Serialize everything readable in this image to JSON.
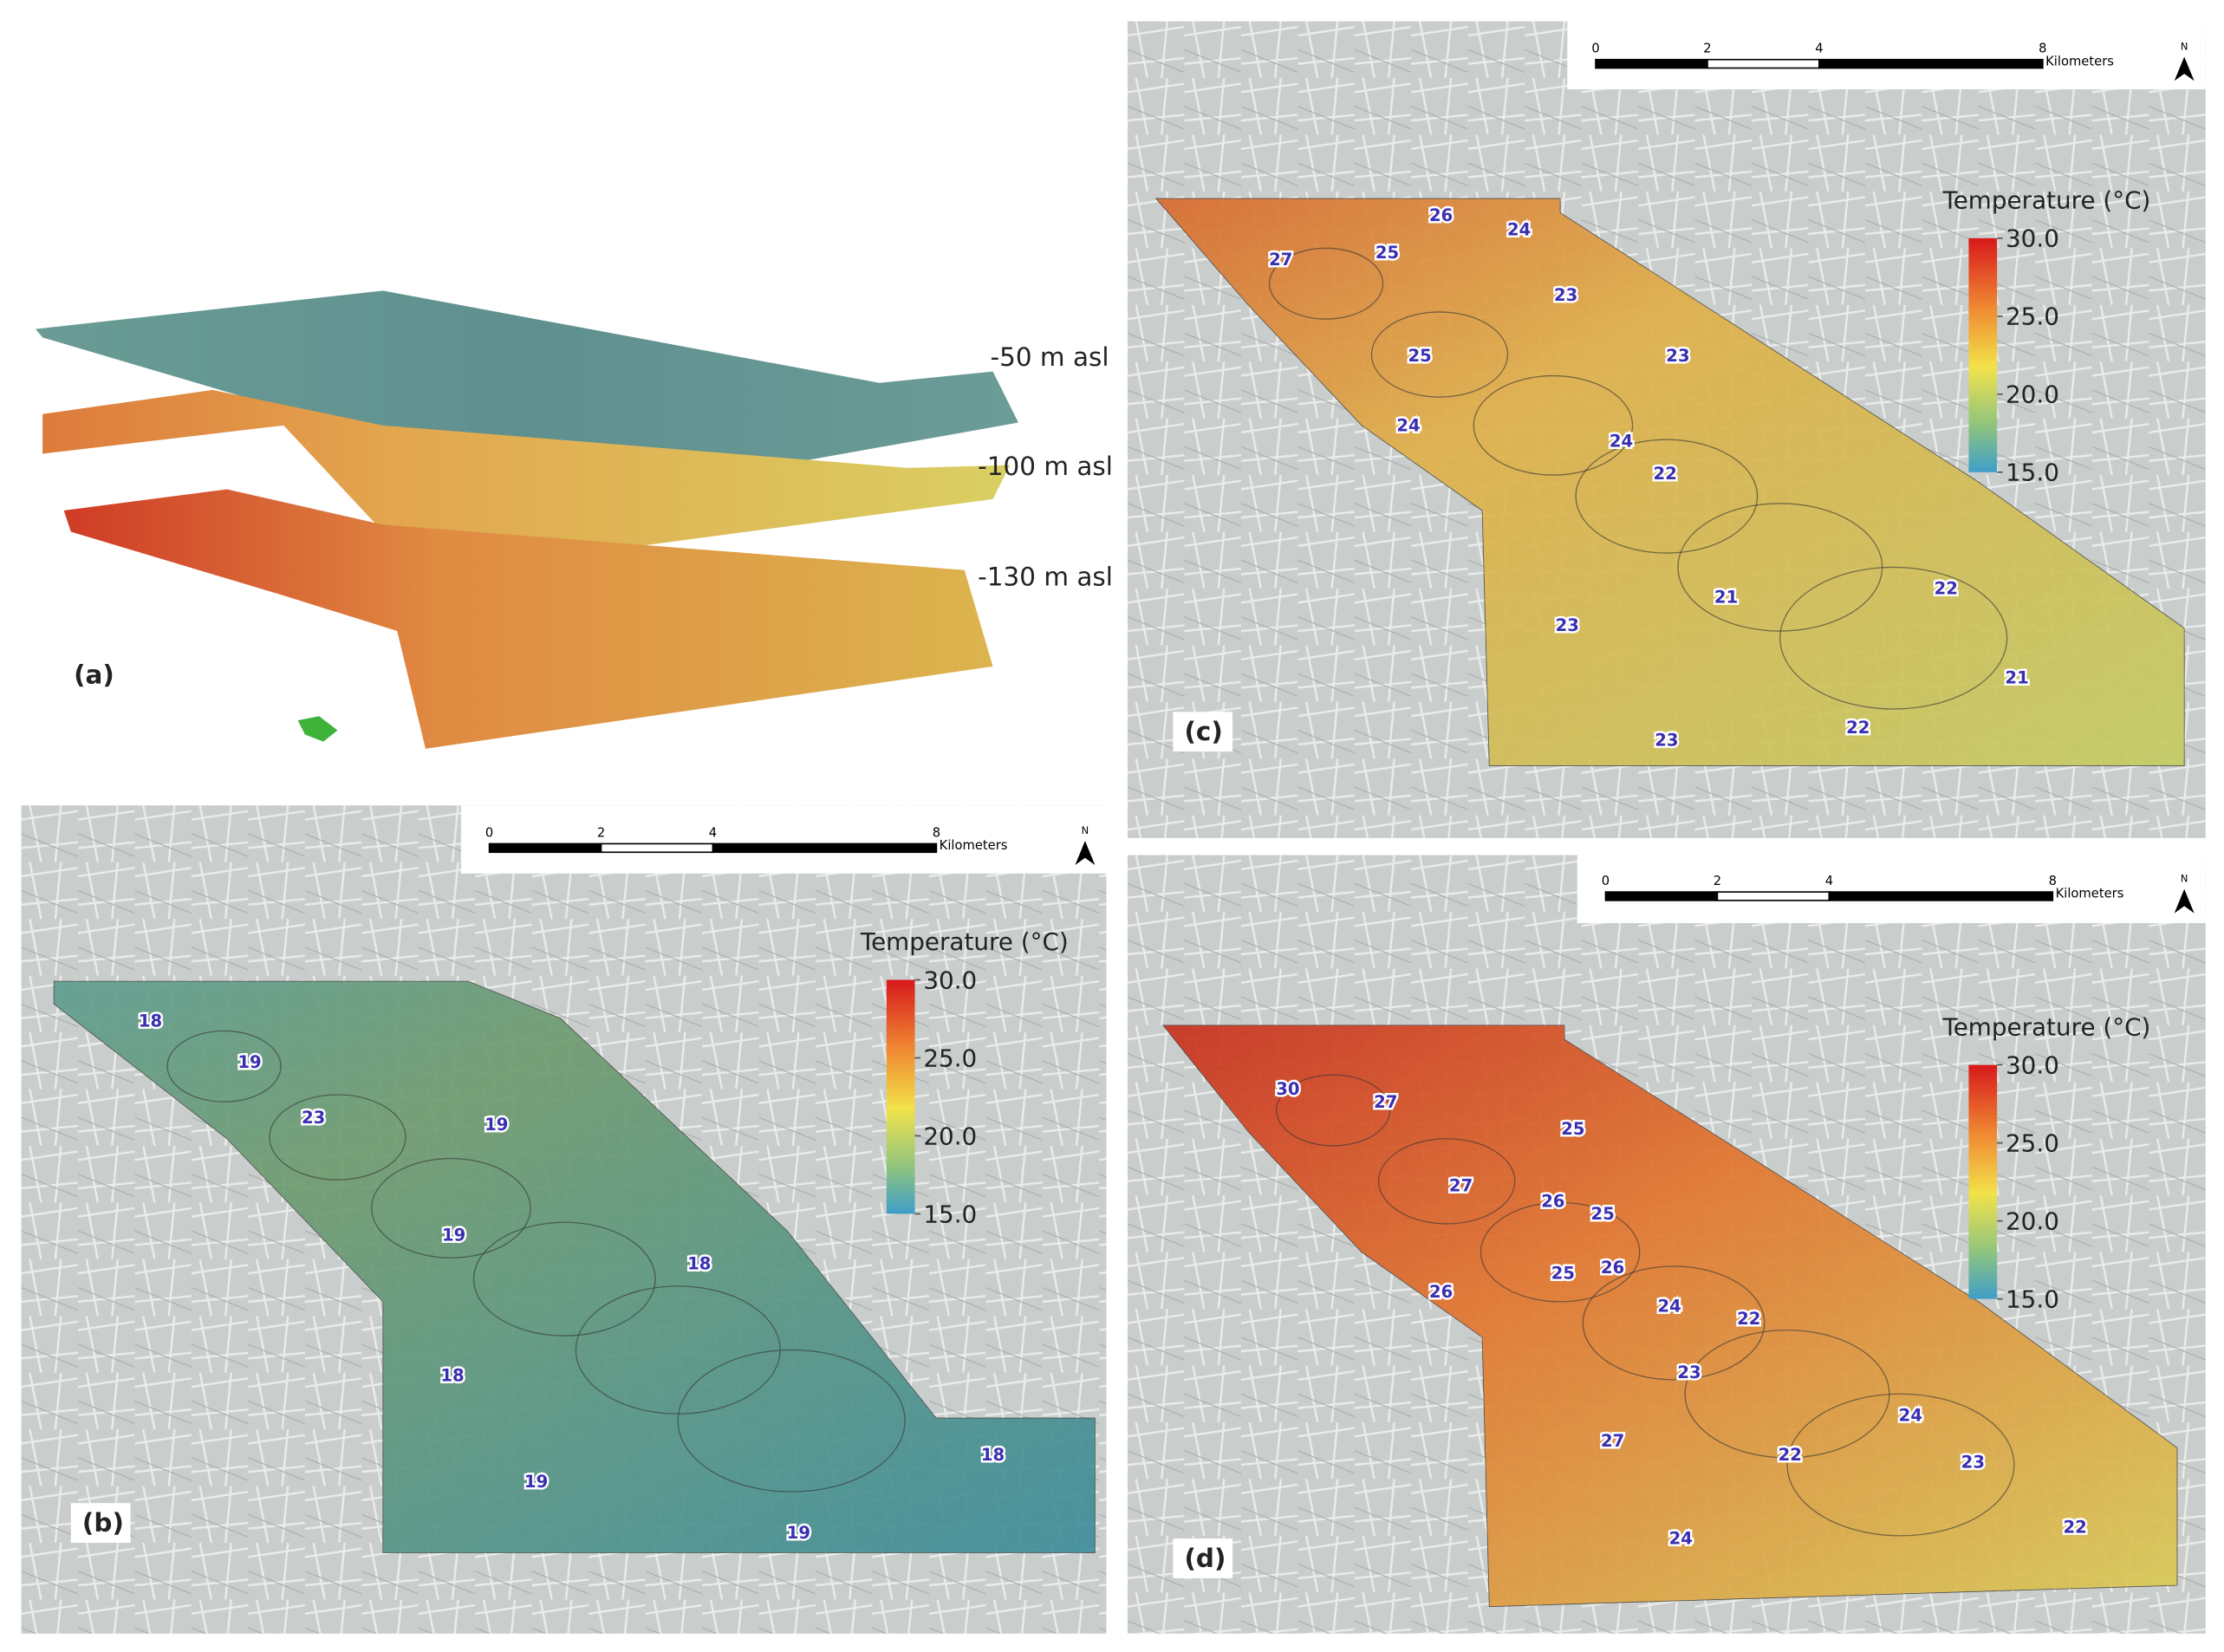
{
  "panel_a": {
    "label": "(a)",
    "layers": [
      "-50 m asl",
      "-100 m asl",
      "-130 m asl"
    ]
  },
  "maps": [
    {
      "label": "(b)",
      "scale_ticks": [
        0,
        2,
        4,
        8
      ],
      "scale_unit": "Kilometers",
      "north": "N",
      "legend_title": "Temperature (°C)",
      "legend_ticks": [
        {
          "value": 30,
          "label": "30.0"
        },
        {
          "value": 25,
          "label": "25.0"
        },
        {
          "value": 20,
          "label": "20.0"
        },
        {
          "value": 15,
          "label": "15.0"
        }
      ],
      "contour_labels": [
        18,
        19,
        23,
        19,
        19,
        18,
        18,
        19,
        18,
        19
      ]
    },
    {
      "label": "(c)",
      "scale_ticks": [
        0,
        2,
        4,
        8
      ],
      "scale_unit": "Kilometers",
      "north": "N",
      "legend_title": "Temperature (°C)",
      "legend_ticks": [
        {
          "value": 30,
          "label": "30.0"
        },
        {
          "value": 25,
          "label": "25.0"
        },
        {
          "value": 20,
          "label": "20.0"
        },
        {
          "value": 15,
          "label": "15.0"
        }
      ],
      "contour_labels": [
        26,
        24,
        27,
        25,
        23,
        25,
        23,
        24,
        24,
        22,
        21,
        22,
        23,
        21,
        22,
        23
      ]
    },
    {
      "label": "(d)",
      "scale_ticks": [
        0,
        2,
        4,
        8
      ],
      "scale_unit": "Kilometers",
      "north": "N",
      "legend_title": "Temperature (°C)",
      "legend_ticks": [
        {
          "value": 30,
          "label": "30.0"
        },
        {
          "value": 25,
          "label": "25.0"
        },
        {
          "value": 20,
          "label": "20.0"
        },
        {
          "value": 15,
          "label": "15.0"
        }
      ],
      "contour_labels": [
        30,
        27,
        25,
        27,
        26,
        25,
        26,
        25,
        26,
        24,
        22,
        23,
        24,
        27,
        22,
        23,
        24,
        22
      ]
    }
  ]
}
